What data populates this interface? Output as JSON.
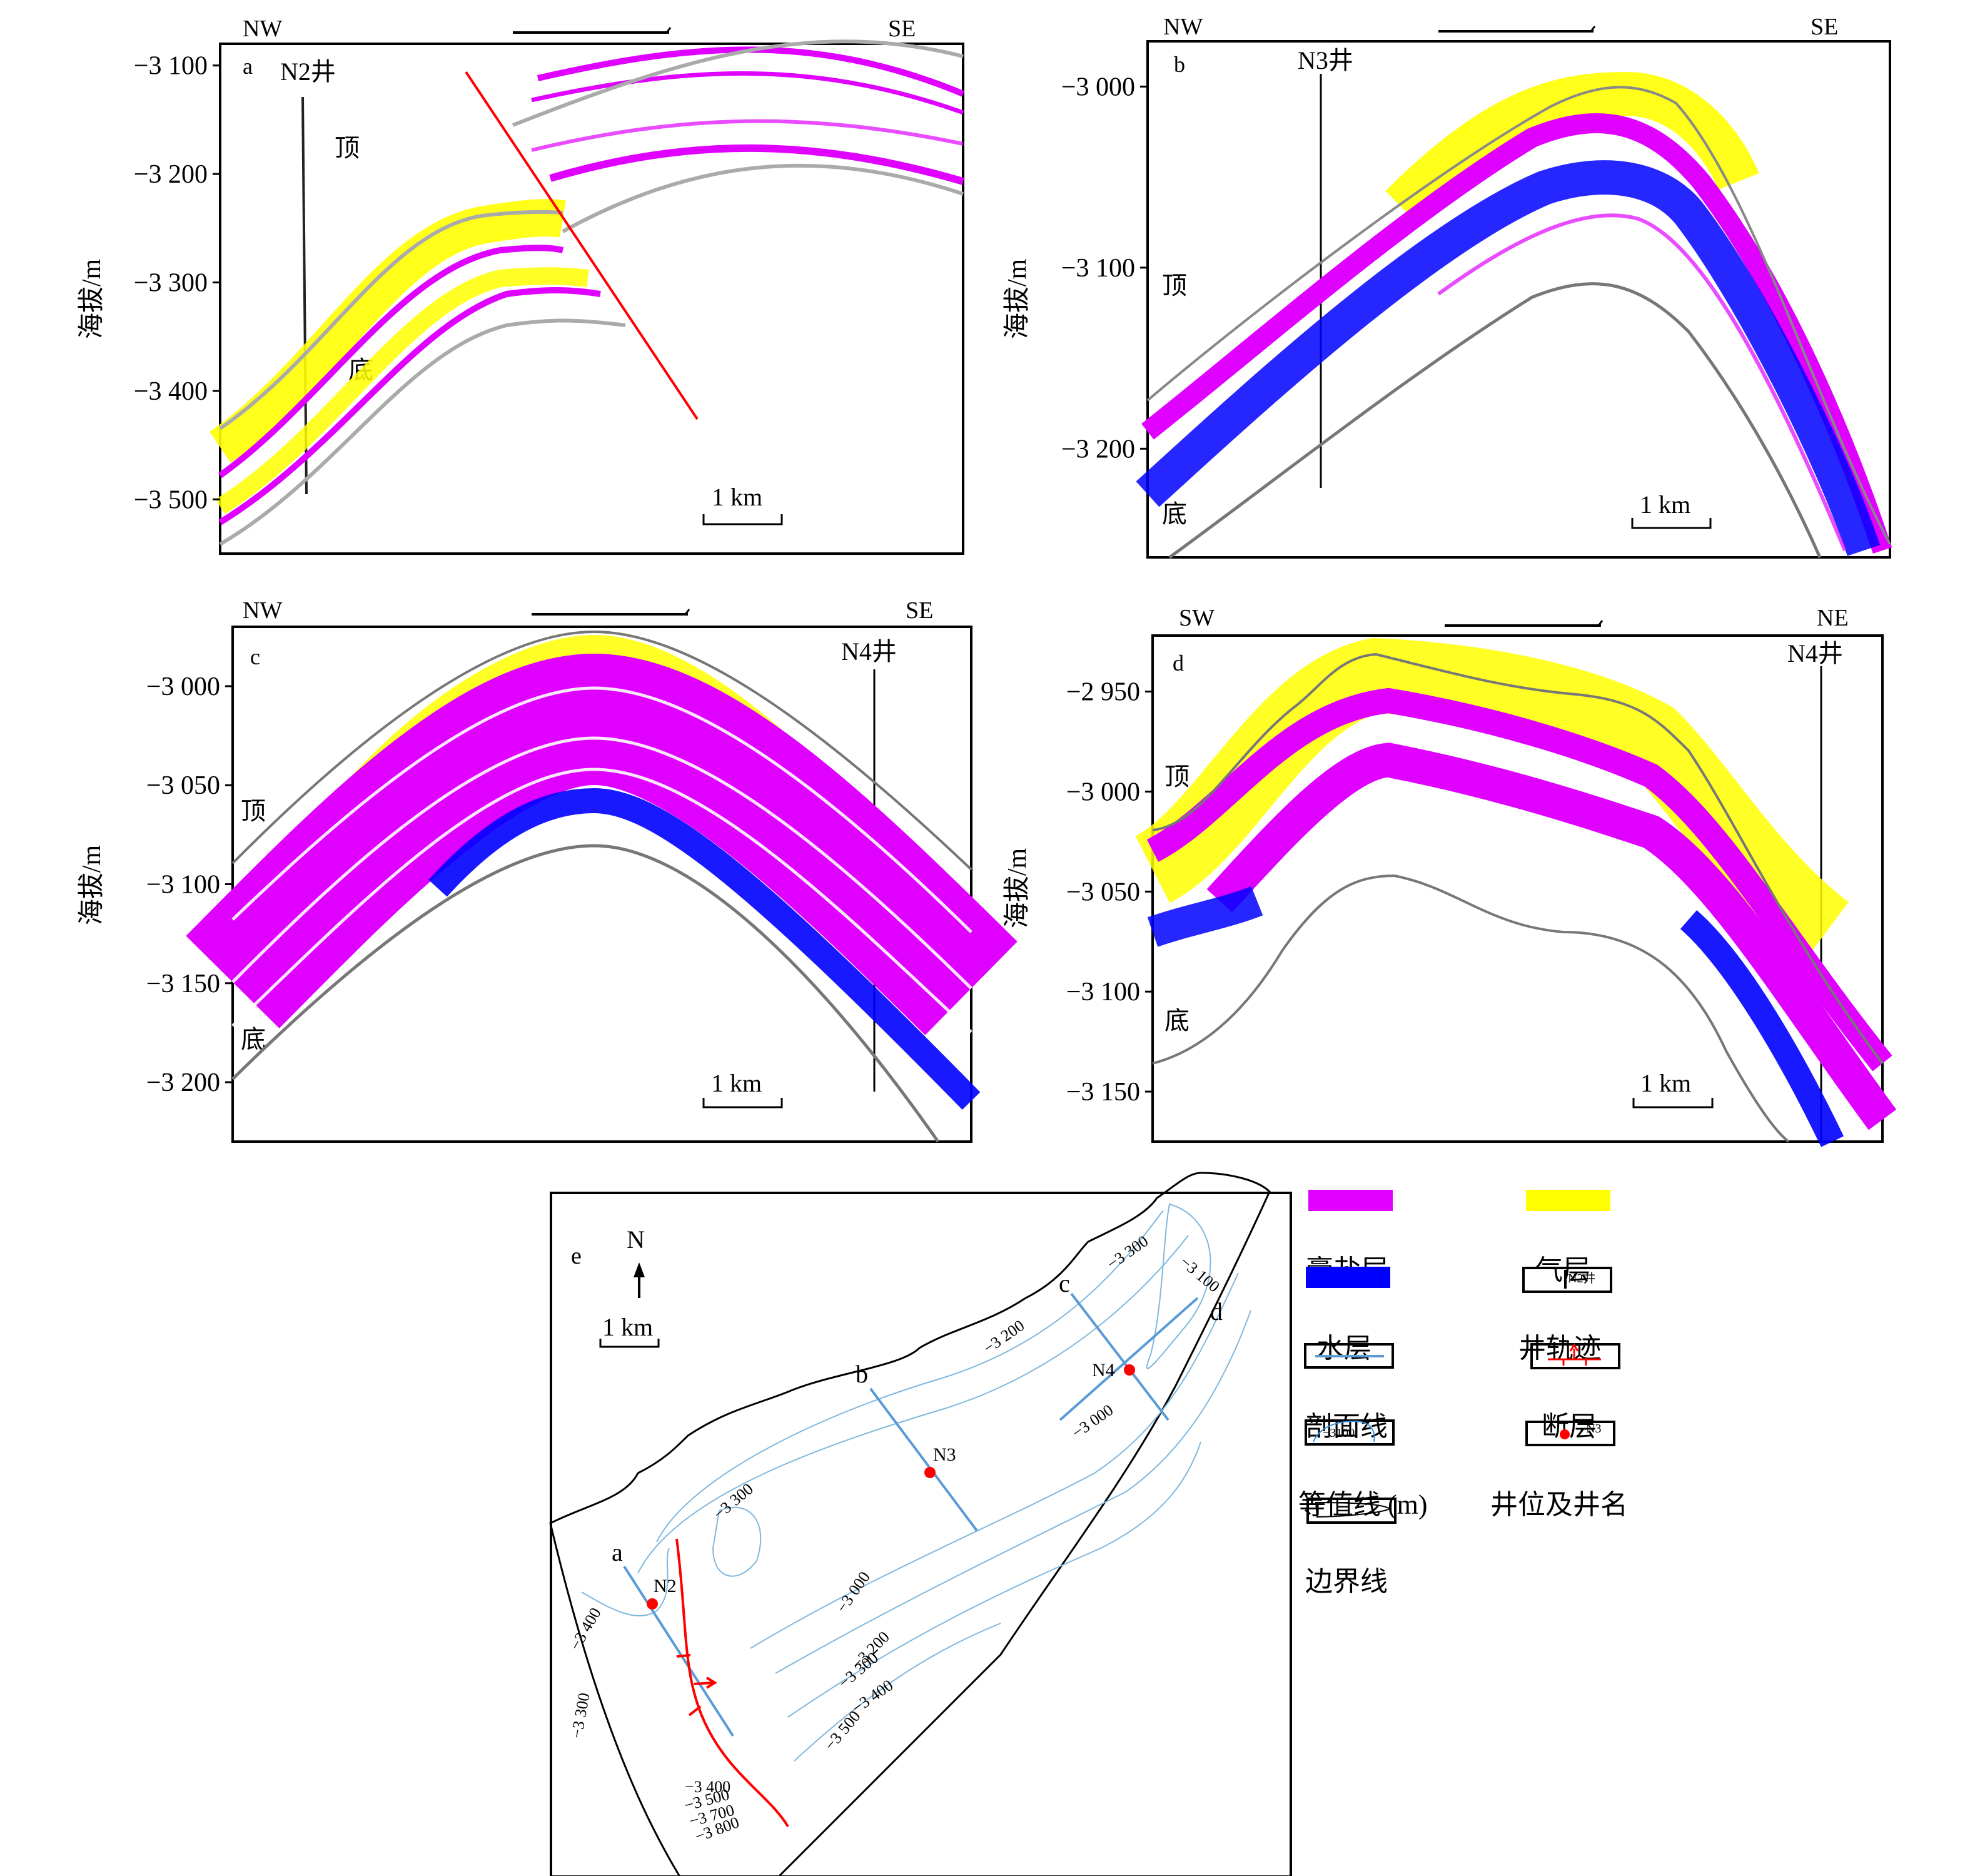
{
  "colors": {
    "gypsum_salt": "#e000ff",
    "gas": "#ffff00",
    "water": "#0000ff",
    "profile_line": "#5b9bd5",
    "fault": "#ff0000",
    "well": "#ff0000",
    "contour": "#7fb8de",
    "boundary_line": "#999999"
  },
  "ylabel": "海拔/m",
  "scale_label": "1 km",
  "top_label": "顶",
  "bottom_label": "底",
  "panels": [
    {
      "id": "a",
      "left_dir": "NW",
      "right_dir": "SE",
      "well": "N2井",
      "yticks": [
        "−3 100",
        "−3 200",
        "−3 300",
        "−3 400",
        "−3 500"
      ],
      "ytick_values": [
        -3100,
        -3200,
        -3300,
        -3400,
        -3500
      ],
      "ylim": [
        -3550,
        -3080
      ],
      "has_fault": true
    },
    {
      "id": "b",
      "left_dir": "NW",
      "right_dir": "SE",
      "well": "N3井",
      "yticks": [
        "−3 000",
        "−3 100",
        "−3 200"
      ],
      "ytick_values": [
        -3000,
        -3100,
        -3200
      ],
      "ylim": [
        -3260,
        -2975
      ]
    },
    {
      "id": "c",
      "left_dir": "NW",
      "right_dir": "SE",
      "well": "N4井",
      "yticks": [
        "−3 000",
        "−3 050",
        "−3 100",
        "−3 150",
        "−3 200"
      ],
      "ytick_values": [
        -3000,
        -3050,
        -3100,
        -3150,
        -3200
      ],
      "ylim": [
        -3230,
        -2970
      ]
    },
    {
      "id": "d",
      "left_dir": "SW",
      "right_dir": "NE",
      "well": "N4井",
      "yticks": [
        "−2 950",
        "−3 000",
        "−3 050",
        "−3 100",
        "−3 150"
      ],
      "ytick_values": [
        -2950,
        -3000,
        -3050,
        -3100,
        -3150
      ],
      "ylim": [
        -3175,
        -2922
      ]
    }
  ],
  "map": {
    "label": "e",
    "north": "N",
    "scale_label": "1 km",
    "profile_labels": [
      "a",
      "b",
      "c",
      "d"
    ],
    "wells": [
      "N2",
      "N3",
      "N4"
    ],
    "contour_labels": [
      "−3 300",
      "−3 100",
      "−3 200",
      "−3 000",
      "−3 300",
      "−3 000",
      "−3 400",
      "−3 300",
      "−3 200",
      "−3 300",
      "−3 400",
      "−3 500",
      "−3 400",
      "−3 500",
      "−3 700",
      "−3 800"
    ]
  },
  "legend": {
    "items": [
      {
        "label": "膏盐层",
        "type": "swatch-gypsum"
      },
      {
        "label": "气层",
        "type": "swatch-gas"
      },
      {
        "label": "水层",
        "type": "swatch-water"
      },
      {
        "label": "井轨迹",
        "type": "well-track",
        "sample": "N2井"
      },
      {
        "label": "剖面线",
        "type": "profile-line"
      },
      {
        "label": "断层",
        "type": "fault"
      },
      {
        "label": "等值线 (m)",
        "type": "contour",
        "sample": "−3100"
      },
      {
        "label": "井位及井名",
        "type": "well-location",
        "sample": "N3"
      },
      {
        "label": "边界线",
        "type": "boundary"
      }
    ]
  }
}
